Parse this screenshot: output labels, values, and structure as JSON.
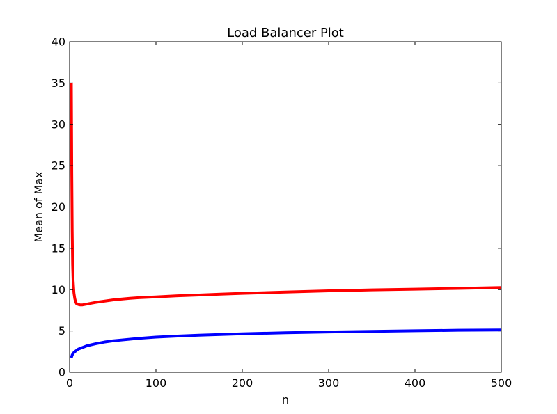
{
  "chart_data": {
    "type": "line",
    "title": "Load Balancer Plot",
    "xlabel": "n",
    "ylabel": "Mean of Max",
    "xlim": [
      0,
      500
    ],
    "ylim": [
      0,
      40
    ],
    "x_ticks": [
      0,
      100,
      200,
      300,
      400,
      500
    ],
    "y_ticks": [
      0,
      5,
      10,
      15,
      20,
      25,
      30,
      35,
      40
    ],
    "grid": false,
    "legend": "none",
    "series": [
      {
        "color": "#ff0000",
        "x": [
          2,
          2.5,
          3,
          3.5,
          4,
          5,
          6,
          7,
          8,
          10,
          12,
          15,
          20,
          25,
          30,
          40,
          50,
          60,
          70,
          80,
          100,
          125,
          150,
          175,
          200,
          250,
          300,
          350,
          400,
          450,
          500
        ],
        "y": [
          35,
          24,
          17,
          13,
          11.2,
          9.6,
          8.9,
          8.5,
          8.3,
          8.2,
          8.15,
          8.15,
          8.25,
          8.35,
          8.45,
          8.6,
          8.75,
          8.85,
          8.95,
          9.02,
          9.12,
          9.25,
          9.35,
          9.45,
          9.55,
          9.7,
          9.85,
          9.97,
          10.05,
          10.15,
          10.25
        ]
      },
      {
        "color": "#0000ff",
        "x": [
          2,
          3,
          5,
          8,
          10,
          15,
          20,
          30,
          40,
          50,
          60,
          80,
          100,
          125,
          150,
          175,
          200,
          250,
          300,
          350,
          400,
          450,
          500
        ],
        "y": [
          1.75,
          2.1,
          2.4,
          2.65,
          2.8,
          3.0,
          3.2,
          3.45,
          3.65,
          3.8,
          3.9,
          4.1,
          4.25,
          4.38,
          4.48,
          4.57,
          4.65,
          4.78,
          4.87,
          4.95,
          5.02,
          5.08,
          5.12
        ]
      }
    ]
  }
}
